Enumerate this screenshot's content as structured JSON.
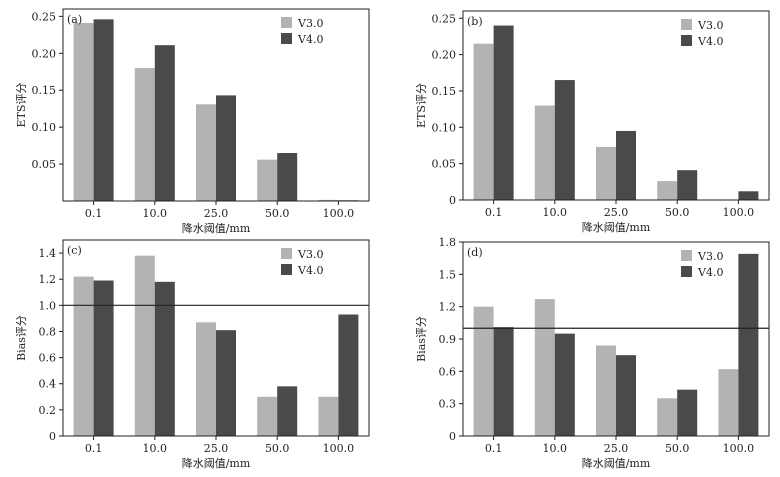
{
  "colors": {
    "v3": "#b3b3b3",
    "v4": "#4a4a4a",
    "axis": "#222222",
    "refline": "#222222"
  },
  "chart_data": [
    {
      "type": "bar",
      "panel_label": "(a)",
      "categories": [
        "0.1",
        "10.0",
        "25.0",
        "50.0",
        "100.0"
      ],
      "series": [
        {
          "name": "V3.0",
          "values": [
            0.241,
            0.18,
            0.131,
            0.056,
            0.0015
          ]
        },
        {
          "name": "V4.0",
          "values": [
            0.246,
            0.211,
            0.143,
            0.065,
            0.001
          ]
        }
      ],
      "ylim": [
        0.0,
        0.26
      ],
      "yticks": [
        0.05,
        0.1,
        0.15,
        0.2,
        0.25
      ],
      "ytick_labels": [
        "0.05",
        "0.10",
        "0.15",
        "0.20",
        "0.25"
      ],
      "ylabel": "ETS评分",
      "xlabel": "降水阈值/mm",
      "ref_line": null,
      "legend": "top-right"
    },
    {
      "type": "bar",
      "panel_label": "(b)",
      "categories": [
        "0.1",
        "10.0",
        "25.0",
        "50.0",
        "100.0"
      ],
      "series": [
        {
          "name": "V3.0",
          "values": [
            0.215,
            0.13,
            0.073,
            0.026,
            0.0
          ]
        },
        {
          "name": "V4.0",
          "values": [
            0.24,
            0.165,
            0.095,
            0.041,
            0.012
          ]
        }
      ],
      "ylim": [
        0.0,
        0.26
      ],
      "yticks": [
        0,
        0.05,
        0.1,
        0.15,
        0.2,
        0.25
      ],
      "ytick_labels": [
        "0",
        "0.05",
        "0.10",
        "0.15",
        "0.20",
        "0.25"
      ],
      "ylabel": "ETS评分",
      "xlabel": "降水阈值/mm",
      "ref_line": null,
      "legend": "top-right"
    },
    {
      "type": "bar",
      "panel_label": "(c)",
      "categories": [
        "0.1",
        "10.0",
        "25.0",
        "50.0",
        "100.0"
      ],
      "series": [
        {
          "name": "V3.0",
          "values": [
            1.22,
            1.38,
            0.87,
            0.3,
            0.3
          ]
        },
        {
          "name": "V4.0",
          "values": [
            1.19,
            1.18,
            0.81,
            0.38,
            0.93
          ]
        }
      ],
      "ylim": [
        0,
        1.5
      ],
      "yticks": [
        0,
        0.2,
        0.4,
        0.6,
        0.8,
        1.0,
        1.2,
        1.4
      ],
      "ytick_labels": [
        "0",
        "0.2",
        "0.4",
        "0.6",
        "0.8",
        "1.0",
        "1.2",
        "1.4"
      ],
      "ylabel": "Bias评分",
      "xlabel": "降水阈值/mm",
      "ref_line": 1.0,
      "legend": "top-right"
    },
    {
      "type": "bar",
      "panel_label": "(d)",
      "categories": [
        "0.1",
        "10.0",
        "25.0",
        "50.0",
        "100.0"
      ],
      "series": [
        {
          "name": "V3.0",
          "values": [
            1.2,
            1.27,
            0.84,
            0.35,
            0.62
          ]
        },
        {
          "name": "V4.0",
          "values": [
            1.01,
            0.95,
            0.75,
            0.43,
            1.69
          ]
        }
      ],
      "ylim": [
        0,
        1.8
      ],
      "yticks": [
        0,
        0.3,
        0.6,
        0.9,
        1.2,
        1.5,
        1.8
      ],
      "ytick_labels": [
        "0",
        "0.3",
        "0.6",
        "0.9",
        "1.2",
        "1.5",
        "1.8"
      ],
      "ylabel": "Bias评分",
      "xlabel": "降水阈值/mm",
      "ref_line": 1.0,
      "legend": "top-right"
    }
  ]
}
